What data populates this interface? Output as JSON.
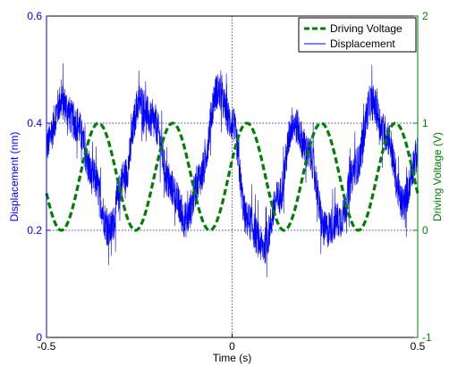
{
  "chart_data": {
    "type": "line",
    "title": "",
    "xlabel": "Time (s)",
    "ylabel_left": "Displacement (nm)",
    "ylabel_right": "Driving Voltage (V)",
    "xlim": [
      -0.5,
      0.5
    ],
    "ylim_left": [
      0,
      0.6
    ],
    "ylim_right": [
      -1,
      2
    ],
    "x_ticks": [
      "-0.5",
      "0",
      "0.5"
    ],
    "y_left_ticks": [
      "0",
      "0.2",
      "0.4",
      "0.6"
    ],
    "y_right_ticks": [
      "-1",
      "0",
      "1",
      "2"
    ],
    "grid": "dotted lines at y=0.2, y=0.4 and x=0",
    "legend": "top-right",
    "colors": {
      "displacement": "#0000ff",
      "voltage": "#008000",
      "grid": "#0000aa"
    },
    "series": [
      {
        "name": "Driving Voltage",
        "axis": "right",
        "style": "dashed",
        "color": "#008000",
        "waveform": "cosine",
        "frequency_hz": 5,
        "offset_v": 0.5,
        "amplitude_v": 0.5,
        "phase_ref_x": -0.46,
        "min_v": 0,
        "max_v": 1
      },
      {
        "name": "Displacement",
        "axis": "left",
        "style": "solid",
        "color": "#0000ff",
        "x": [
          -0.5,
          -0.46,
          -0.42,
          -0.375,
          -0.33,
          -0.29,
          -0.25,
          -0.21,
          -0.165,
          -0.125,
          -0.085,
          -0.04,
          0.0,
          0.04,
          0.085,
          0.125,
          0.165,
          0.21,
          0.25,
          0.29,
          0.335,
          0.375,
          0.415,
          0.46,
          0.5
        ],
        "y": [
          0.36,
          0.44,
          0.4,
          0.3,
          0.2,
          0.3,
          0.44,
          0.4,
          0.28,
          0.22,
          0.3,
          0.46,
          0.4,
          0.22,
          0.17,
          0.26,
          0.4,
          0.34,
          0.2,
          0.22,
          0.32,
          0.44,
          0.38,
          0.25,
          0.34
        ]
      }
    ]
  }
}
